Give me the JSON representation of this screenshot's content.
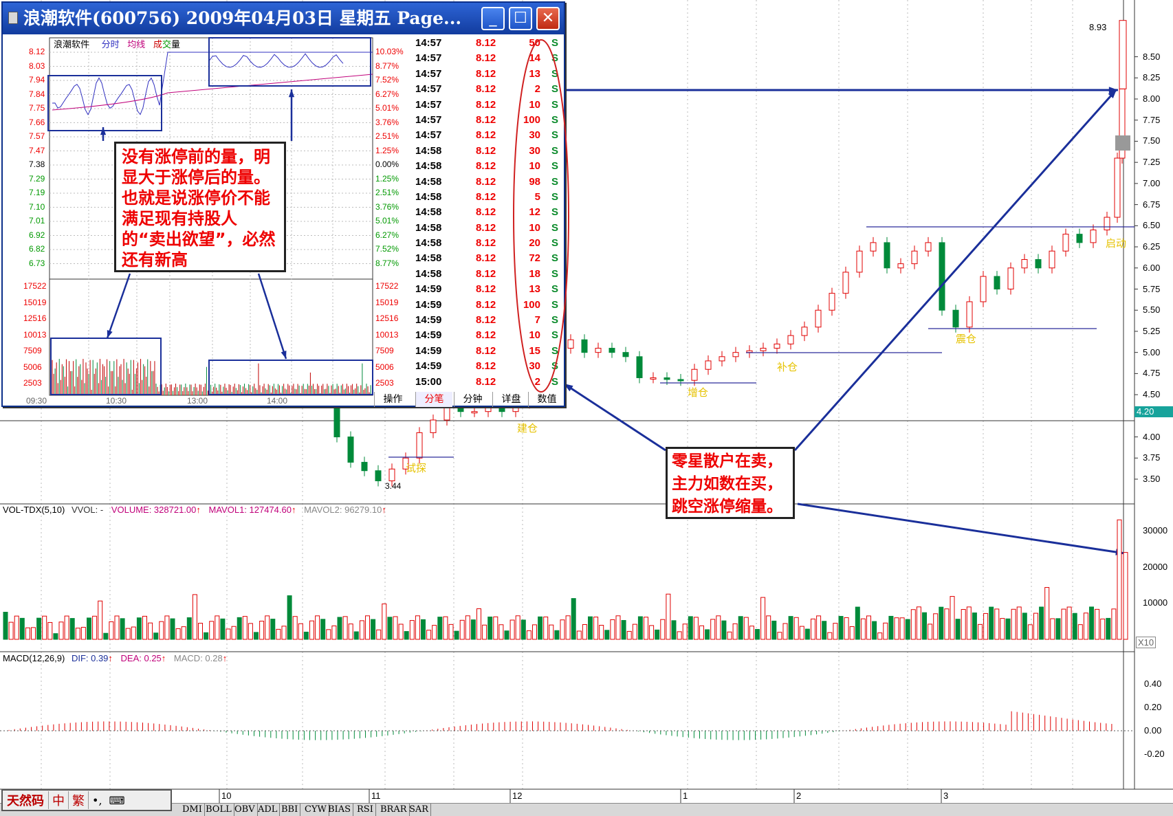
{
  "popup": {
    "title": "浪潮软件(600756)  2009年04月03日  星期五  Page...",
    "chart_header": {
      "name": "浪潮软件",
      "fen": "分时",
      "avg": "均线",
      "cheng": "成",
      "jiao": "交",
      "liang": "量"
    },
    "price_labels": [
      "8.12",
      "8.03",
      "7.94",
      "7.84",
      "7.75",
      "7.66",
      "7.57",
      "7.47",
      "7.38",
      "7.29",
      "7.19",
      "7.10",
      "7.01",
      "6.92",
      "6.82",
      "6.73"
    ],
    "pct_labels": [
      "10.03%",
      "8.77%",
      "7.52%",
      "6.27%",
      "5.01%",
      "3.76%",
      "2.51%",
      "1.25%",
      "0.00%",
      "1.25%",
      "2.51%",
      "3.76%",
      "5.01%",
      "6.27%",
      "7.52%",
      "8.77%"
    ],
    "vol_labels": [
      "17522",
      "15019",
      "12516",
      "10013",
      "7509",
      "5006",
      "2503"
    ],
    "time_labels": [
      "09:30",
      "10:30",
      "13:00",
      "14:00"
    ],
    "ticks": [
      {
        "time": "14:57",
        "price": "8.12",
        "vol": "50",
        "bs": "S"
      },
      {
        "time": "14:57",
        "price": "8.12",
        "vol": "14",
        "bs": "S"
      },
      {
        "time": "14:57",
        "price": "8.12",
        "vol": "13",
        "bs": "S"
      },
      {
        "time": "14:57",
        "price": "8.12",
        "vol": "2",
        "bs": "S"
      },
      {
        "time": "14:57",
        "price": "8.12",
        "vol": "10",
        "bs": "S"
      },
      {
        "time": "14:57",
        "price": "8.12",
        "vol": "100",
        "bs": "S"
      },
      {
        "time": "14:57",
        "price": "8.12",
        "vol": "30",
        "bs": "S"
      },
      {
        "time": "14:58",
        "price": "8.12",
        "vol": "30",
        "bs": "S"
      },
      {
        "time": "14:58",
        "price": "8.12",
        "vol": "10",
        "bs": "S"
      },
      {
        "time": "14:58",
        "price": "8.12",
        "vol": "98",
        "bs": "S"
      },
      {
        "time": "14:58",
        "price": "8.12",
        "vol": "5",
        "bs": "S"
      },
      {
        "time": "14:58",
        "price": "8.12",
        "vol": "12",
        "bs": "S"
      },
      {
        "time": "14:58",
        "price": "8.12",
        "vol": "10",
        "bs": "S"
      },
      {
        "time": "14:58",
        "price": "8.12",
        "vol": "20",
        "bs": "S"
      },
      {
        "time": "14:58",
        "price": "8.12",
        "vol": "72",
        "bs": "S"
      },
      {
        "time": "14:58",
        "price": "8.12",
        "vol": "18",
        "bs": "S"
      },
      {
        "time": "14:59",
        "price": "8.12",
        "vol": "13",
        "bs": "S"
      },
      {
        "time": "14:59",
        "price": "8.12",
        "vol": "100",
        "bs": "S"
      },
      {
        "time": "14:59",
        "price": "8.12",
        "vol": "7",
        "bs": "S"
      },
      {
        "time": "14:59",
        "price": "8.12",
        "vol": "10",
        "bs": "S"
      },
      {
        "time": "14:59",
        "price": "8.12",
        "vol": "15",
        "bs": "S"
      },
      {
        "time": "14:59",
        "price": "8.12",
        "vol": "30",
        "bs": "S"
      },
      {
        "time": "15:00",
        "price": "8.12",
        "vol": "2",
        "bs": "S"
      }
    ],
    "tabs": [
      "操作",
      "分笔",
      "分钟",
      "详盘",
      "数值"
    ],
    "active_tab": "分笔",
    "callout": "没有涨停前的量，明显大于涨停后的量。也就是说涨停价不能满足现有持股人的“卖出欲望”，必然还有新高"
  },
  "main_chart": {
    "price_axis": [
      "8.50",
      "8.25",
      "8.00",
      "7.75",
      "7.50",
      "7.25",
      "7.00",
      "6.75",
      "6.50",
      "6.25",
      "6.00",
      "5.75",
      "5.50",
      "5.25",
      "5.00",
      "4.75",
      "4.50",
      "4.20",
      "4.00",
      "3.75",
      "3.50"
    ],
    "high_label": "8.93",
    "low_label": "3.44",
    "current_price": "4.20",
    "month_labels": [
      "10",
      "11",
      "12",
      "1",
      "2",
      "3"
    ],
    "annotations": [
      "试探",
      "建仓",
      "增仓",
      "补仓",
      "震仓",
      "启动"
    ],
    "callout": "零星散户在卖，主力如数在买，跳空涨停缩量。"
  },
  "vol_panel": {
    "name": "VOL-TDX(5,10)",
    "vvol": "VVOL: -",
    "volume": "VOLUME: 328721.00",
    "mavol1": "MAVOL1: 127474.60",
    "mavol2": "MAVOL2: 96279.10",
    "axis": [
      "30000",
      "20000",
      "10000"
    ],
    "unit": "X10"
  },
  "macd_panel": {
    "name": "MACD(12,26,9)",
    "dif": "DIF: 0.39",
    "dea": "DEA: 0.25",
    "macd": "MACD: 0.28",
    "axis": [
      "0.40",
      "0.20",
      "0.00",
      "-0.20"
    ]
  },
  "indicator_tabs": [
    "DMI",
    "BOLL",
    "OBV",
    "ADL",
    "BBI",
    "CYW",
    "BIAS",
    "RSI",
    "BRAR",
    "SAR"
  ],
  "ime_bar": {
    "name": "天然码",
    "lang": "中",
    "trad": "繁"
  },
  "colors": {
    "up": "#e00000",
    "down": "#008a3a",
    "annotation": "#e6c200",
    "arrow": "#1a2f9a",
    "bg": "#ffffff"
  }
}
